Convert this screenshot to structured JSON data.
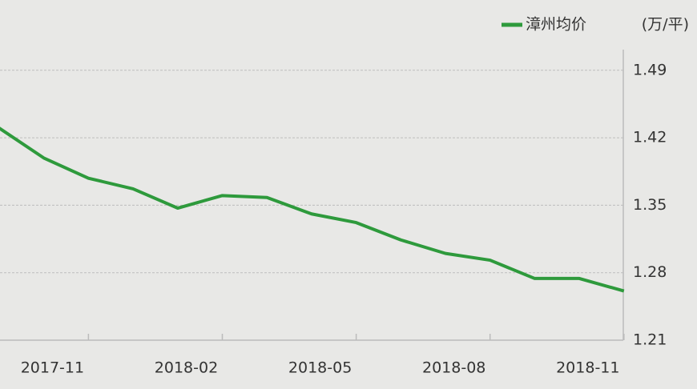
{
  "chart_data": {
    "type": "line",
    "legend_position": "top-right",
    "unit_label": "(万/平)",
    "categories": [
      null,
      null,
      "2017-11",
      null,
      null,
      "2018-02",
      null,
      null,
      "2018-05",
      null,
      null,
      "2018-08",
      null,
      null,
      "2018-11"
    ],
    "series": [
      {
        "name": "漳州均价",
        "color": "#2e9a3c",
        "values": [
          1.43,
          1.399,
          1.378,
          1.367,
          1.347,
          1.36,
          1.358,
          1.341,
          1.332,
          1.314,
          1.3,
          1.293,
          1.274,
          1.274,
          1.261
        ]
      }
    ],
    "ylim": [
      1.21,
      1.52
    ],
    "yticks": [
      1.21,
      1.28,
      1.35,
      1.42,
      1.49
    ],
    "y_axis_side": "right",
    "grid": true
  }
}
